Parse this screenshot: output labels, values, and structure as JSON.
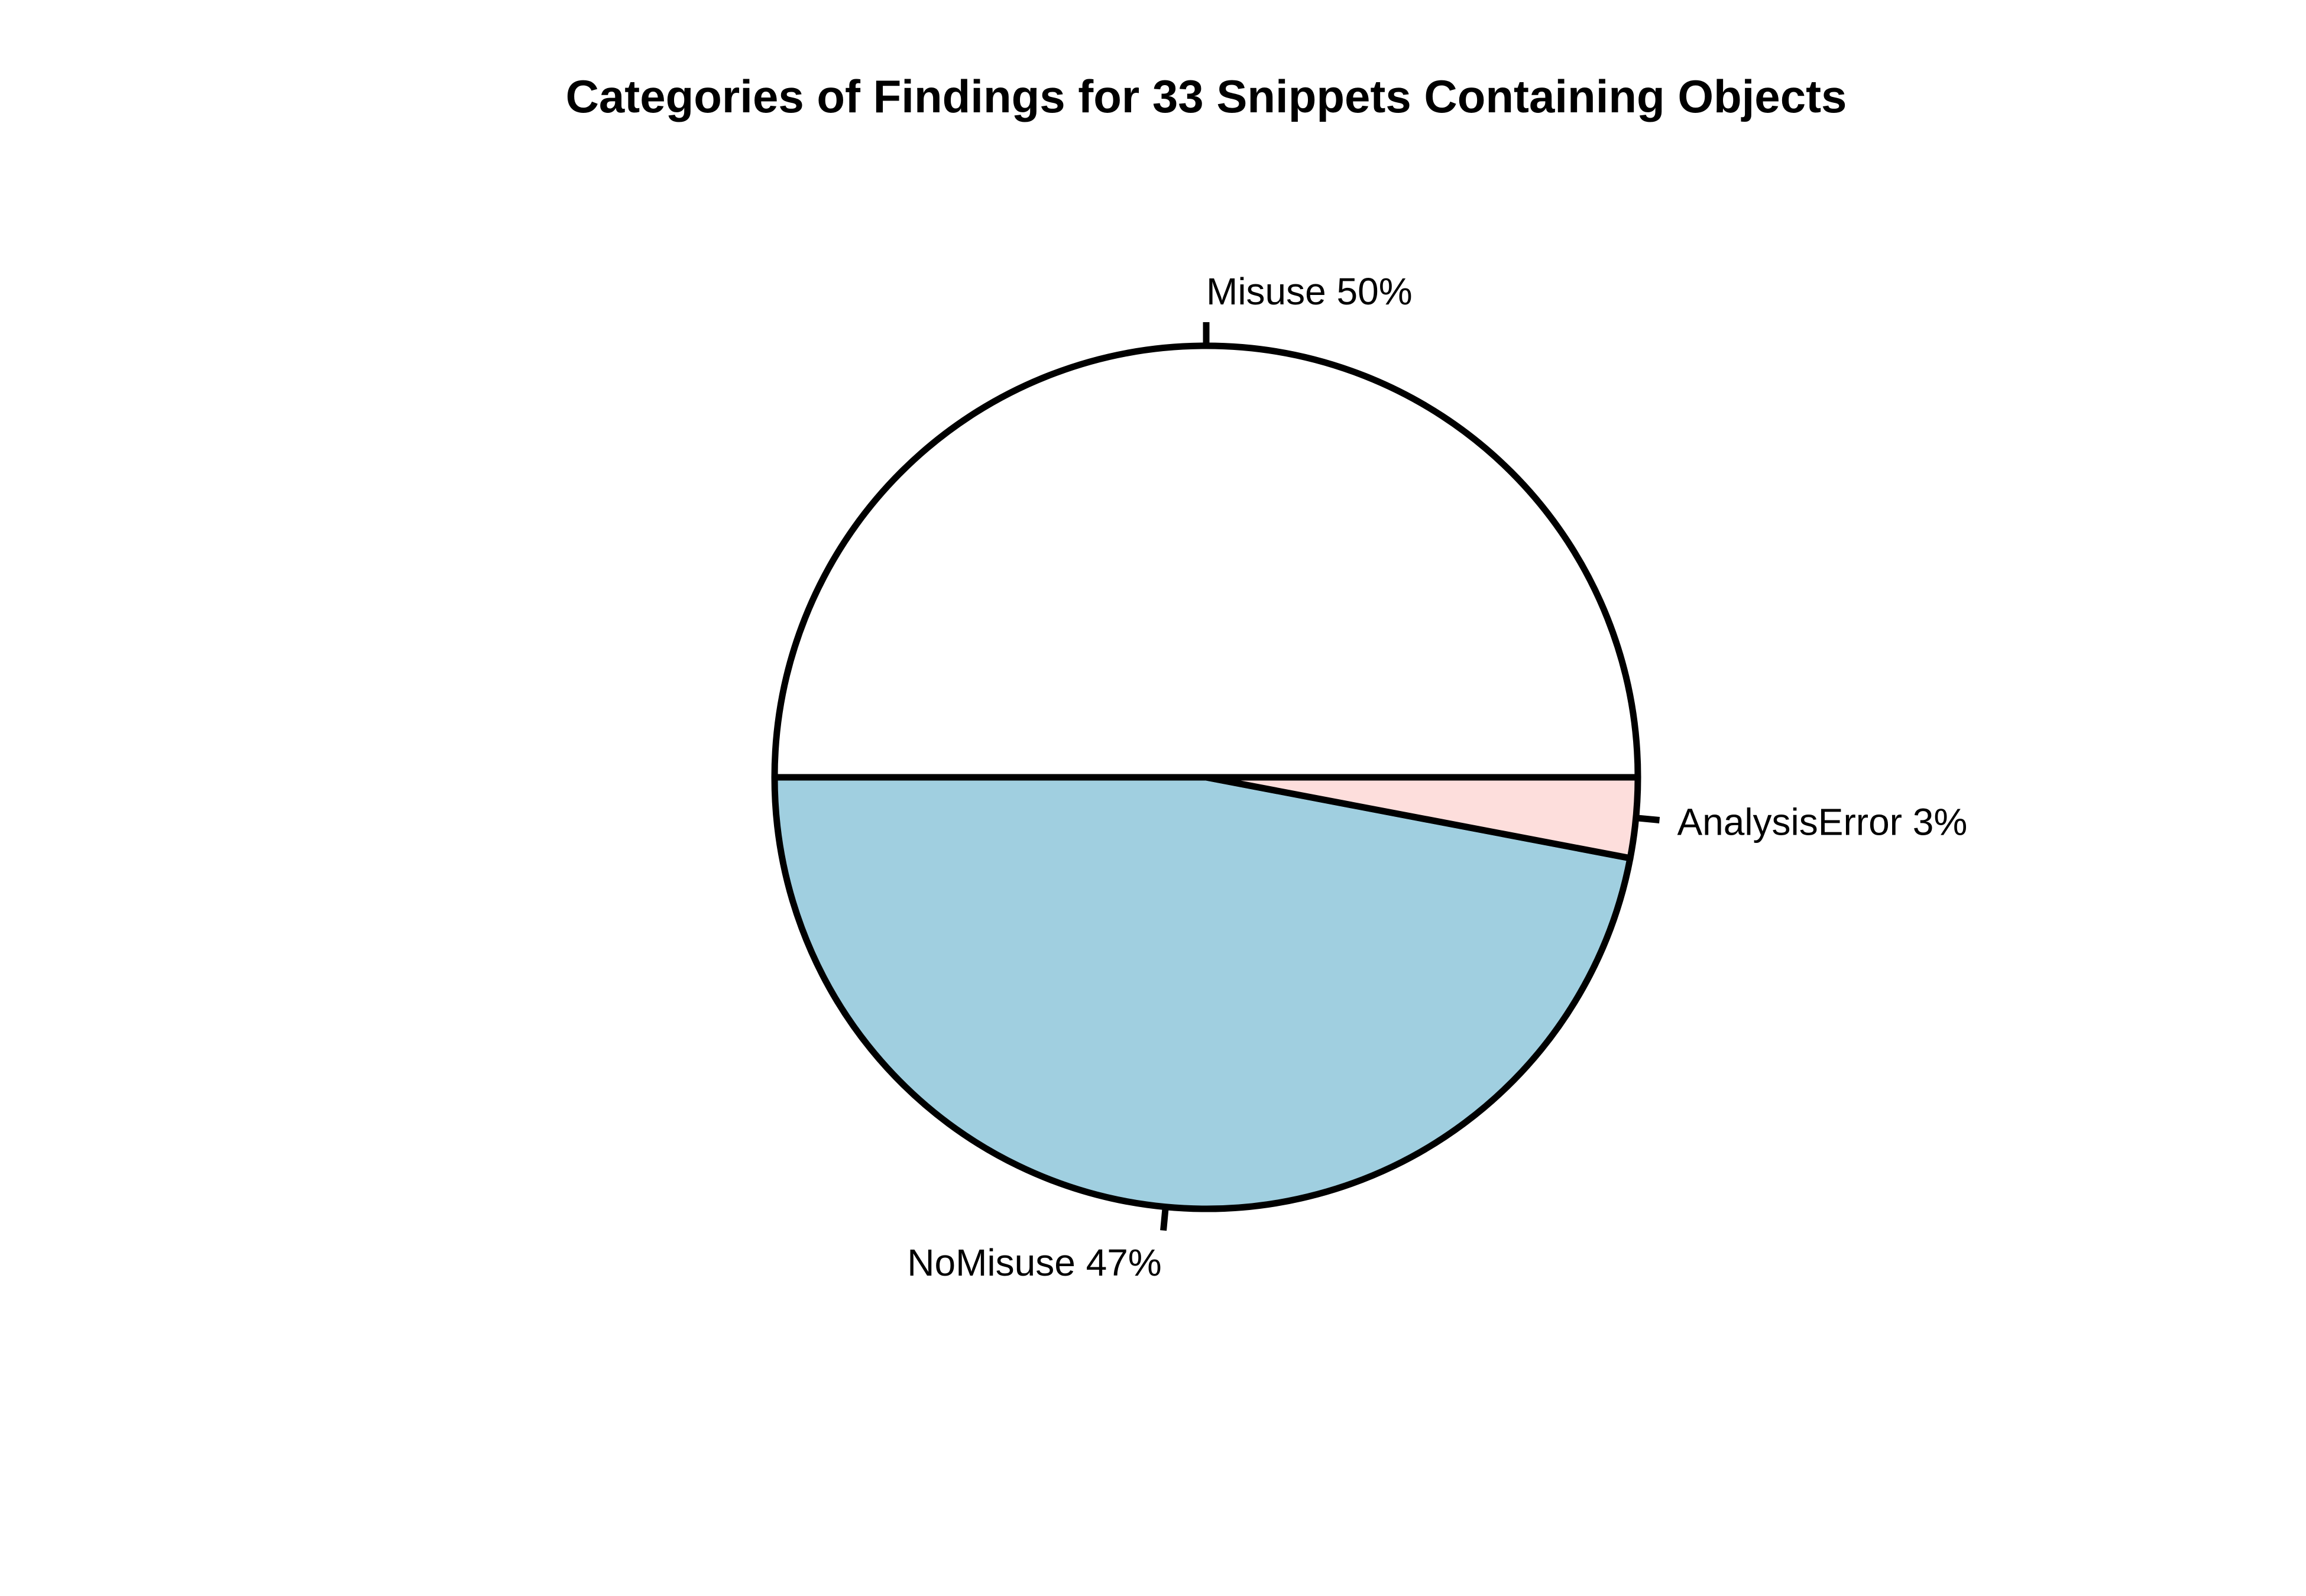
{
  "chart_data": {
    "type": "pie",
    "title": "Categories of Findings for 33 Snippets Containing Objects",
    "start_angle_deg": 0,
    "direction": "counterclockwise",
    "stroke_color": "#000000",
    "slices": [
      {
        "name": "Misuse",
        "value": 50,
        "label": "Misuse 50%",
        "color": "#FFFFFF"
      },
      {
        "name": "NoMisuse",
        "value": 47,
        "label": "NoMisuse 47%",
        "color": "#A0CFE0"
      },
      {
        "name": "AnalysisError",
        "value": 3,
        "label": "AnalysisError 3%",
        "color": "#FDDEDC"
      }
    ]
  }
}
